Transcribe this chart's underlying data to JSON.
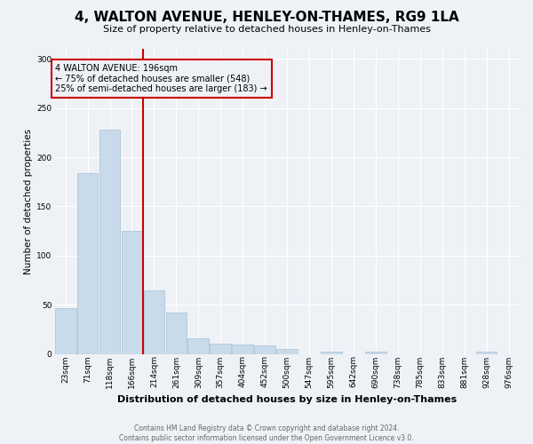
{
  "title": "4, WALTON AVENUE, HENLEY-ON-THAMES, RG9 1LA",
  "subtitle": "Size of property relative to detached houses in Henley-on-Thames",
  "xlabel": "Distribution of detached houses by size in Henley-on-Thames",
  "ylabel": "Number of detached properties",
  "footer_line1": "Contains HM Land Registry data © Crown copyright and database right 2024.",
  "footer_line2": "Contains public sector information licensed under the Open Government Licence v3.0.",
  "annotation_line1": "4 WALTON AVENUE: 196sqm",
  "annotation_line2": "← 75% of detached houses are smaller (548)",
  "annotation_line3": "25% of semi-detached houses are larger (183) →",
  "property_size_idx": 4,
  "bar_color": "#c9daea",
  "bar_edge_color": "#aec6d8",
  "vline_color": "#cc0000",
  "annotation_box_edge": "#cc0000",
  "background_color": "#eef2f7",
  "grid_color": "#ffffff",
  "categories": [
    "23sqm",
    "71sqm",
    "118sqm",
    "166sqm",
    "214sqm",
    "261sqm",
    "309sqm",
    "357sqm",
    "404sqm",
    "452sqm",
    "500sqm",
    "547sqm",
    "595sqm",
    "642sqm",
    "690sqm",
    "738sqm",
    "785sqm",
    "833sqm",
    "881sqm",
    "928sqm",
    "976sqm"
  ],
  "values": [
    47,
    184,
    228,
    125,
    65,
    42,
    16,
    11,
    10,
    9,
    5,
    0,
    3,
    0,
    3,
    0,
    0,
    0,
    0,
    3,
    0
  ],
  "ylim": [
    0,
    310
  ],
  "yticks": [
    0,
    50,
    100,
    150,
    200,
    250,
    300
  ],
  "title_fontsize": 11,
  "subtitle_fontsize": 8,
  "xlabel_fontsize": 8,
  "ylabel_fontsize": 7.5,
  "tick_fontsize": 6.5,
  "footer_fontsize": 5.5,
  "annotation_fontsize": 7
}
